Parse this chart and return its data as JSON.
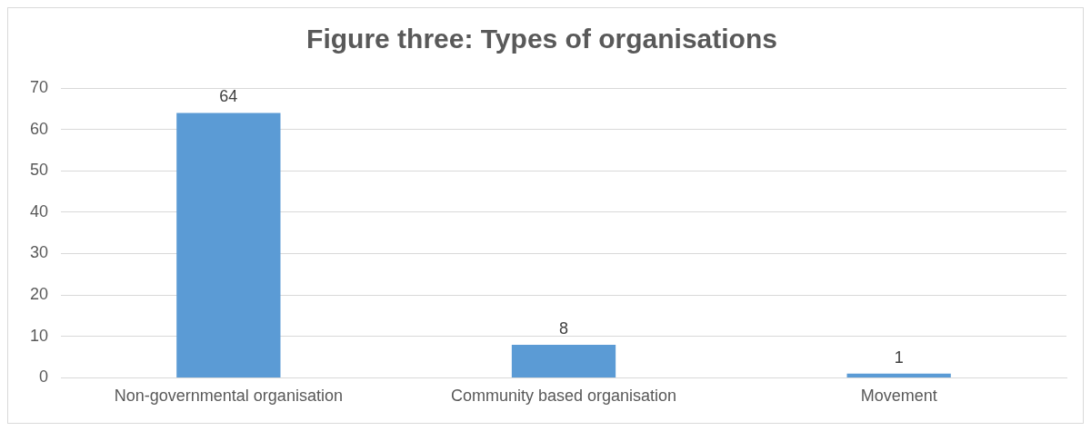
{
  "chart_data": {
    "type": "bar",
    "title": "Figure three: Types of organisations",
    "categories": [
      "Non-governmental organisation",
      "Community based organisation",
      "Movement"
    ],
    "values": [
      64,
      8,
      1
    ],
    "color": "#5b9bd5",
    "ylim": [
      0,
      70
    ],
    "yticks": [
      0,
      10,
      20,
      30,
      40,
      50,
      60,
      70
    ],
    "grid": "y",
    "data_labels": true,
    "legend": false
  }
}
